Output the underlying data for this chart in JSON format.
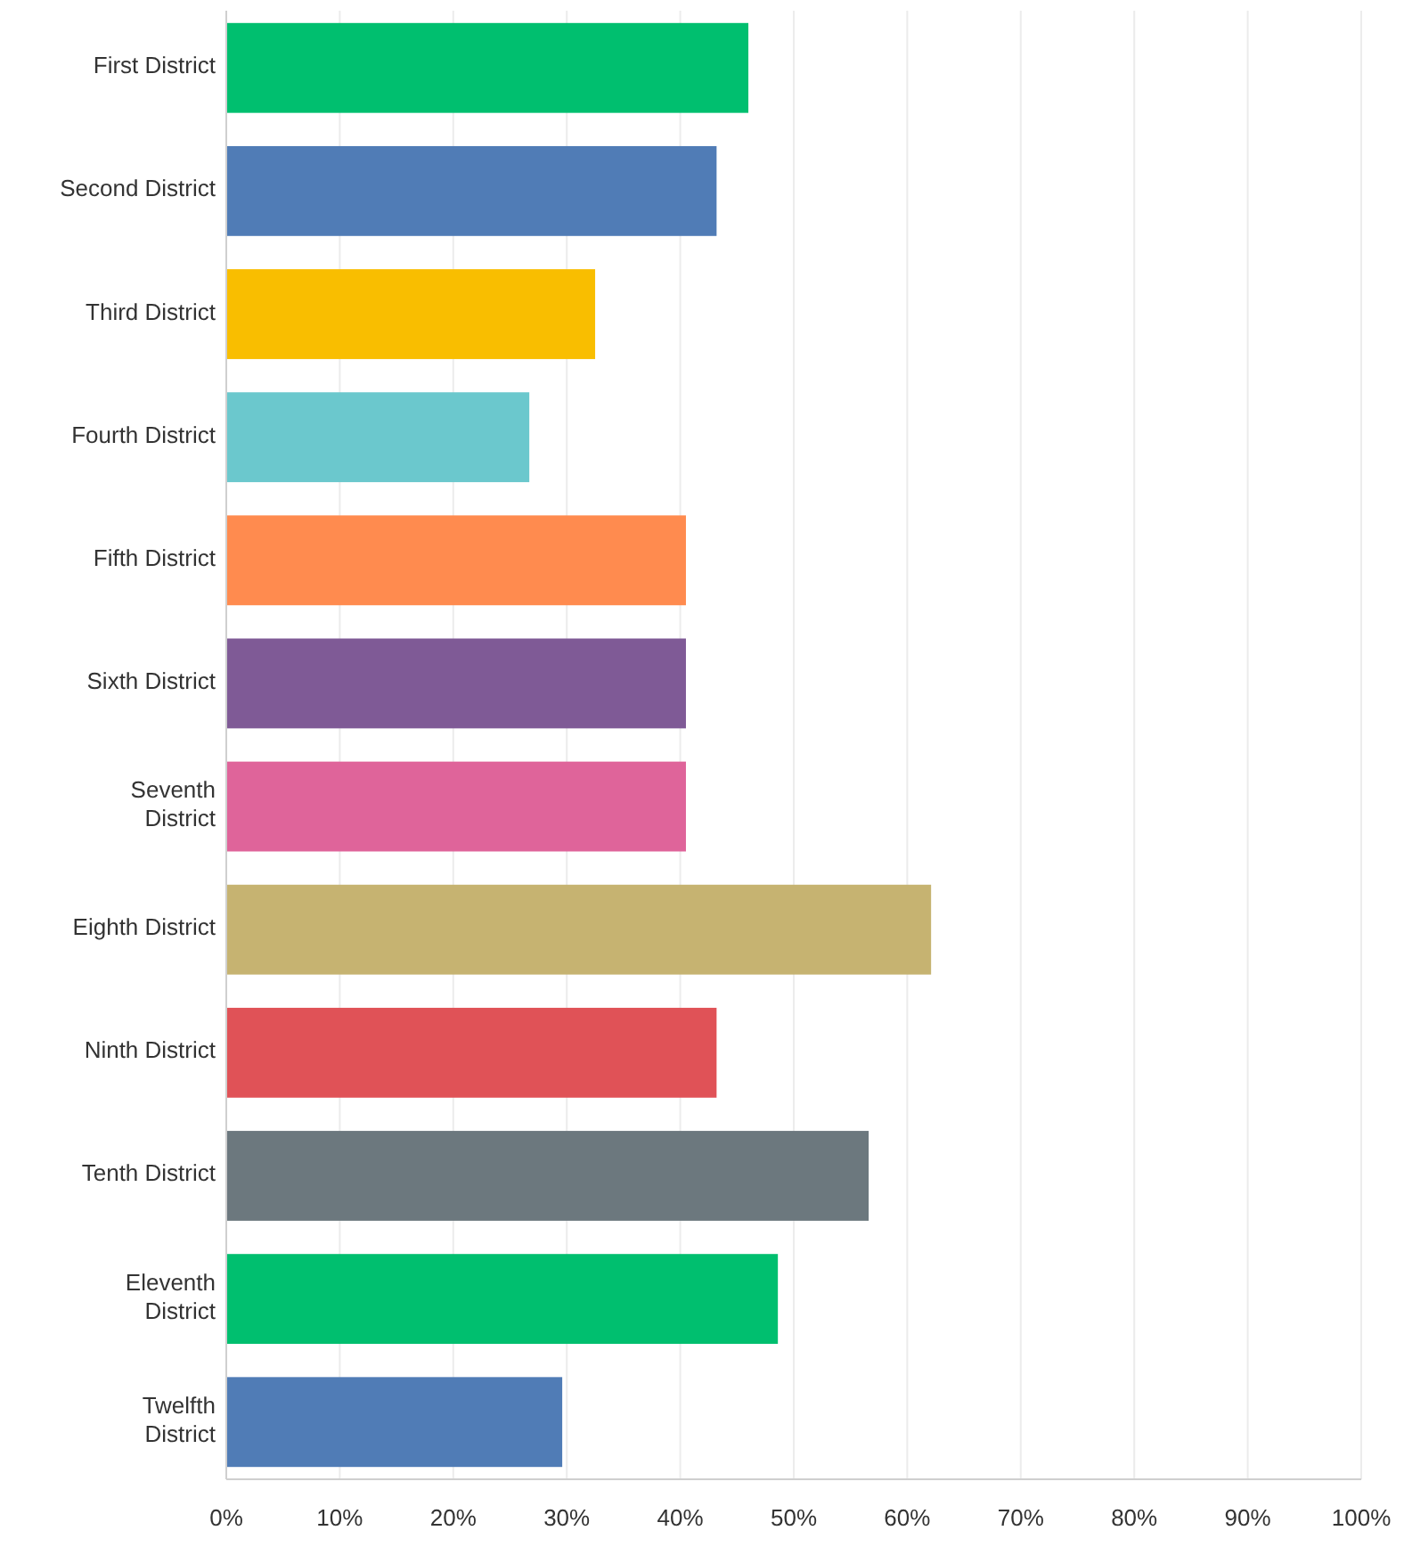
{
  "chart_data": {
    "type": "bar",
    "orientation": "horizontal",
    "categories": [
      "First District",
      "Second District",
      "Third District",
      "Fourth District",
      "Fifth District",
      "Sixth District",
      "Seventh District",
      "Eighth District",
      "Ninth District",
      "Tenth District",
      "Eleventh District",
      "Twelfth District"
    ],
    "values": [
      46,
      43.2,
      32.5,
      26.7,
      40.5,
      40.5,
      40.5,
      62.1,
      43.2,
      56.6,
      48.6,
      29.6
    ],
    "colors": [
      "#00bf6f",
      "#507cb6",
      "#f9be00",
      "#6bc8cd",
      "#ff8b4f",
      "#7f5a96",
      "#df649a",
      "#c6b371",
      "#e05257",
      "#6c787e",
      "#00bf6f",
      "#507cb6"
    ],
    "xlim": [
      0,
      100
    ],
    "xticks": [
      {
        "value": 0,
        "label": "0%"
      },
      {
        "value": 10,
        "label": "10%"
      },
      {
        "value": 20,
        "label": "20%"
      },
      {
        "value": 30,
        "label": "30%"
      },
      {
        "value": 40,
        "label": "40%"
      },
      {
        "value": 50,
        "label": "50%"
      },
      {
        "value": 60,
        "label": "60%"
      },
      {
        "value": 70,
        "label": "70%"
      },
      {
        "value": 80,
        "label": "80%"
      },
      {
        "value": 90,
        "label": "90%"
      },
      {
        "value": 100,
        "label": "100%"
      }
    ],
    "grid": "x"
  }
}
